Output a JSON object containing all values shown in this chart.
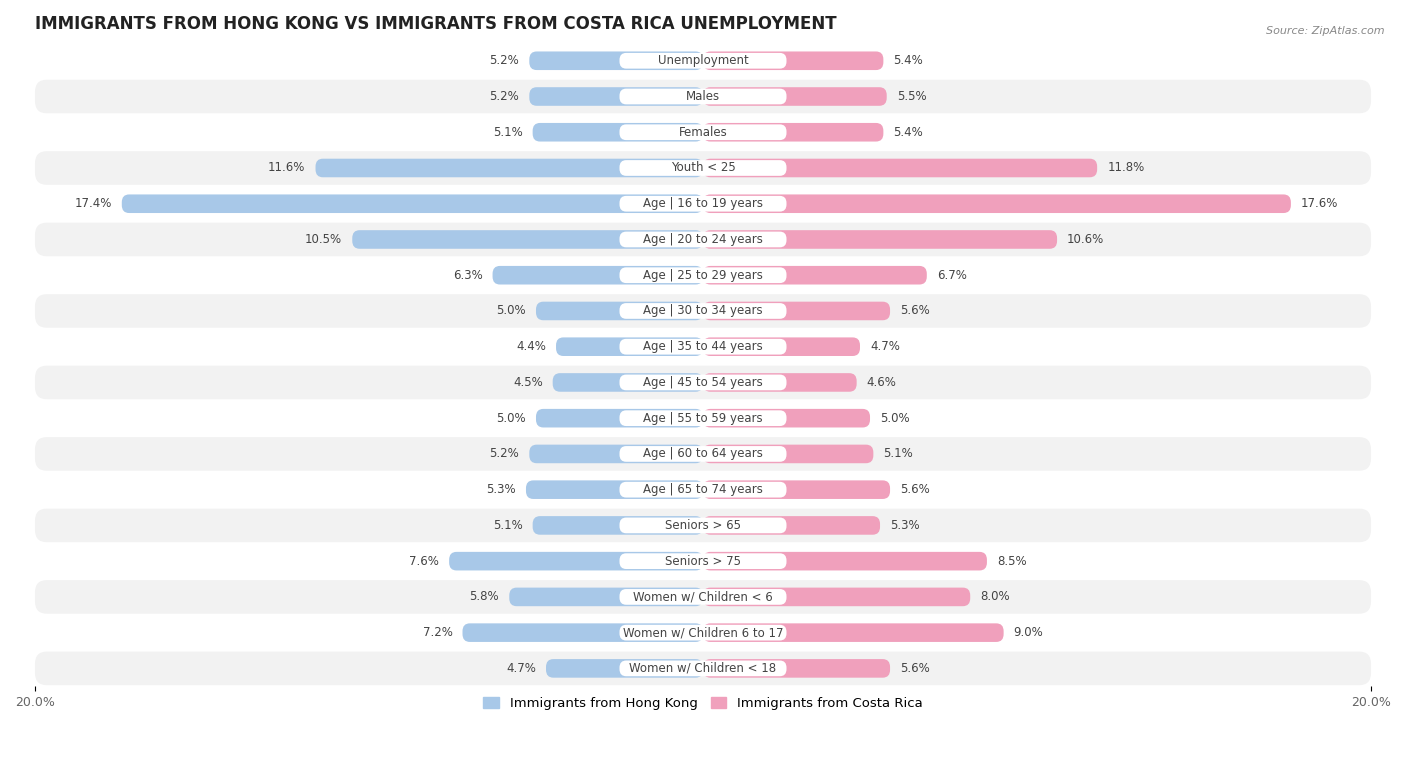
{
  "title": "IMMIGRANTS FROM HONG KONG VS IMMIGRANTS FROM COSTA RICA UNEMPLOYMENT",
  "source": "Source: ZipAtlas.com",
  "categories": [
    "Unemployment",
    "Males",
    "Females",
    "Youth < 25",
    "Age | 16 to 19 years",
    "Age | 20 to 24 years",
    "Age | 25 to 29 years",
    "Age | 30 to 34 years",
    "Age | 35 to 44 years",
    "Age | 45 to 54 years",
    "Age | 55 to 59 years",
    "Age | 60 to 64 years",
    "Age | 65 to 74 years",
    "Seniors > 65",
    "Seniors > 75",
    "Women w/ Children < 6",
    "Women w/ Children 6 to 17",
    "Women w/ Children < 18"
  ],
  "hong_kong_values": [
    5.2,
    5.2,
    5.1,
    11.6,
    17.4,
    10.5,
    6.3,
    5.0,
    4.4,
    4.5,
    5.0,
    5.2,
    5.3,
    5.1,
    7.6,
    5.8,
    7.2,
    4.7
  ],
  "costa_rica_values": [
    5.4,
    5.5,
    5.4,
    11.8,
    17.6,
    10.6,
    6.7,
    5.6,
    4.7,
    4.6,
    5.0,
    5.1,
    5.6,
    5.3,
    8.5,
    8.0,
    9.0,
    5.6
  ],
  "hong_kong_color": "#a8c8e8",
  "costa_rica_color": "#f0a0bc",
  "bar_height": 0.52,
  "xlim": 20.0,
  "bg_color": "#ffffff",
  "row_color_odd": "#f2f2f2",
  "row_color_even": "#ffffff",
  "legend_hk": "Immigrants from Hong Kong",
  "legend_cr": "Immigrants from Costa Rica",
  "label_fontsize": 8.5,
  "title_fontsize": 12,
  "value_fontsize": 8.5
}
